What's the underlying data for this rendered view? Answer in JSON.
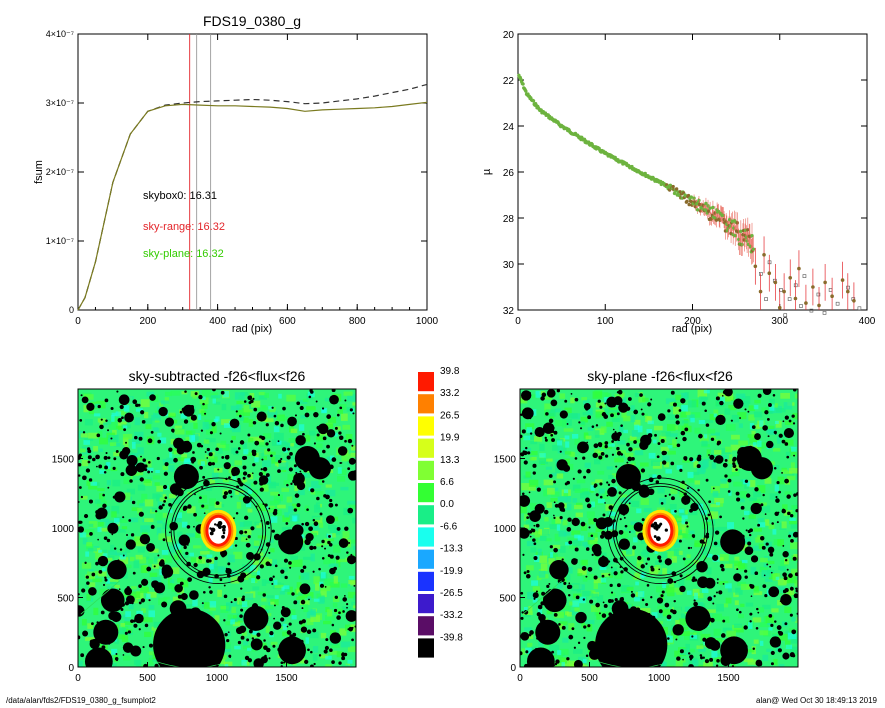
{
  "page": {
    "path": "/data/alan/fds2/FDS19_0380_g_fsumplot2",
    "stamp": "alan@  Wed Oct 30 18:49:13 2019"
  },
  "chart_data": [
    {
      "type": "line",
      "title": "FDS19_0380_g",
      "xlabel": "rad (pix)",
      "ylabel": "fsum",
      "xlim": [
        0,
        1000
      ],
      "ylim": [
        0,
        4e-07
      ],
      "x_ticks": [
        "0",
        "200",
        "400",
        "600",
        "800",
        "1000"
      ],
      "y_ticks": [
        "0",
        "1×10⁻⁷",
        "2×10⁻⁷",
        "3×10⁻⁷",
        "4×10⁻⁷"
      ],
      "vlines": [
        {
          "x": 320,
          "color": "#e3262b"
        },
        {
          "x": 340,
          "color": "#9a9a9a"
        },
        {
          "x": 380,
          "color": "#9a9a9a"
        }
      ],
      "annotations": [
        {
          "text": "skybox0: 16.31",
          "color": "#000000"
        },
        {
          "text": "sky-range: 16.32",
          "color": "#e3262b"
        },
        {
          "text": "sky-plane: 16.32",
          "color": "#33cc00"
        }
      ],
      "series": [
        {
          "style": "dashed",
          "color": "#333333",
          "x": [
            0,
            20,
            50,
            100,
            150,
            200,
            250,
            300,
            350,
            400,
            450,
            500,
            550,
            600,
            650,
            700,
            750,
            800,
            850,
            900,
            950,
            1000
          ],
          "y": [
            0,
            1.8e-08,
            7e-08,
            1.85e-07,
            2.55e-07,
            2.88e-07,
            2.97e-07,
            3e-07,
            3.02e-07,
            3.03e-07,
            3.04e-07,
            3.05e-07,
            3.04e-07,
            3.02e-07,
            2.99e-07,
            3e-07,
            3.03e-07,
            3.06e-07,
            3.1e-07,
            3.15e-07,
            3.2e-07,
            3.27e-07
          ]
        },
        {
          "style": "solid",
          "color": "#7a7a1f",
          "x": [
            0,
            20,
            50,
            100,
            150,
            200,
            250,
            300,
            350,
            400,
            450,
            500,
            550,
            600,
            650,
            700,
            750,
            800,
            850,
            900,
            950,
            1000
          ],
          "y": [
            0,
            1.8e-08,
            7e-08,
            1.85e-07,
            2.55e-07,
            2.88e-07,
            2.96e-07,
            2.98e-07,
            2.97e-07,
            2.96e-07,
            2.96e-07,
            2.95e-07,
            2.94e-07,
            2.92e-07,
            2.88e-07,
            2.9e-07,
            2.91e-07,
            2.92e-07,
            2.93e-07,
            2.95e-07,
            2.98e-07,
            3.01e-07
          ]
        }
      ]
    },
    {
      "type": "scatter",
      "title": "",
      "xlabel": "rad (pix)",
      "ylabel": "µ",
      "xlim": [
        0,
        400
      ],
      "ylim": [
        32,
        20
      ],
      "x_ticks": [
        "0",
        "100",
        "200",
        "300",
        "400"
      ],
      "y_ticks": [
        "20",
        "22",
        "24",
        "26",
        "28",
        "30",
        "32"
      ],
      "profile": {
        "x": [
          1,
          10,
          25,
          50,
          75,
          100,
          125,
          150,
          175,
          200,
          225,
          250,
          270
        ],
        "y": [
          21.8,
          22.6,
          23.3,
          24.0,
          24.6,
          25.2,
          25.7,
          26.2,
          26.7,
          27.3,
          27.9,
          28.6,
          29.2
        ]
      },
      "outer_points": [
        {
          "x": 272,
          "y": 30.1
        },
        {
          "x": 278,
          "y": 31.2
        },
        {
          "x": 282,
          "y": 29.6
        },
        {
          "x": 288,
          "y": 30.4
        },
        {
          "x": 295,
          "y": 30.8
        },
        {
          "x": 300,
          "y": 31.9
        },
        {
          "x": 305,
          "y": 31.2
        },
        {
          "x": 312,
          "y": 30.6
        },
        {
          "x": 318,
          "y": 31.5
        },
        {
          "x": 322,
          "y": 30.2
        },
        {
          "x": 330,
          "y": 31.7
        },
        {
          "x": 338,
          "y": 31.0
        },
        {
          "x": 345,
          "y": 31.8
        },
        {
          "x": 352,
          "y": 30.8
        },
        {
          "x": 360,
          "y": 31.4
        },
        {
          "x": 372,
          "y": 30.7
        },
        {
          "x": 378,
          "y": 31.2
        },
        {
          "x": 385,
          "y": 31.6
        }
      ]
    },
    {
      "type": "heatmap",
      "title": "sky-subtracted -f26<flux<f26",
      "xlim": [
        0,
        2000
      ],
      "ylim": [
        0,
        2000
      ],
      "x_ticks": [
        "0",
        "500",
        "1000",
        "1500"
      ],
      "y_ticks": [
        "0",
        "500",
        "1000",
        "1500"
      ],
      "masks": [
        {
          "x": 800,
          "y": 160,
          "r": 260
        },
        {
          "x": 1650,
          "y": 1500,
          "r": 90
        },
        {
          "x": 1740,
          "y": 1430,
          "r": 80
        },
        {
          "x": 780,
          "y": 1370,
          "r": 90
        },
        {
          "x": 1530,
          "y": 900,
          "r": 90
        },
        {
          "x": 280,
          "y": 700,
          "r": 70
        },
        {
          "x": 250,
          "y": 480,
          "r": 85
        },
        {
          "x": 200,
          "y": 250,
          "r": 90
        },
        {
          "x": 150,
          "y": 40,
          "r": 100
        },
        {
          "x": 1280,
          "y": 350,
          "r": 90
        },
        {
          "x": 1540,
          "y": 120,
          "r": 100
        },
        {
          "x": 720,
          "y": 420,
          "r": 60
        }
      ],
      "galaxy": {
        "x": 1010,
        "y": 980
      },
      "rings": [
        320,
        340,
        380
      ]
    },
    {
      "type": "heatmap",
      "title": "sky-plane -f26<flux<f26",
      "xlim": [
        0,
        2000
      ],
      "ylim": [
        0,
        2000
      ],
      "x_ticks": [
        "0",
        "500",
        "1000",
        "1500"
      ],
      "y_ticks": [
        "0",
        "500",
        "1000",
        "1500"
      ]
    }
  ],
  "colorbar": {
    "labels": [
      "39.8",
      "33.2",
      "26.5",
      "19.9",
      "13.3",
      "6.6",
      "0.0",
      "-6.6",
      "-13.3",
      "-19.9",
      "-26.5",
      "-33.2",
      "-39.8"
    ],
    "colors": [
      "#ff1a00",
      "#ff8000",
      "#ffff00",
      "#d6ff1a",
      "#80ff33",
      "#33ff33",
      "#19ee87",
      "#19ffee",
      "#1aa8ff",
      "#1a33ff",
      "#3d1acc",
      "#5a0d66",
      "#000000"
    ]
  }
}
